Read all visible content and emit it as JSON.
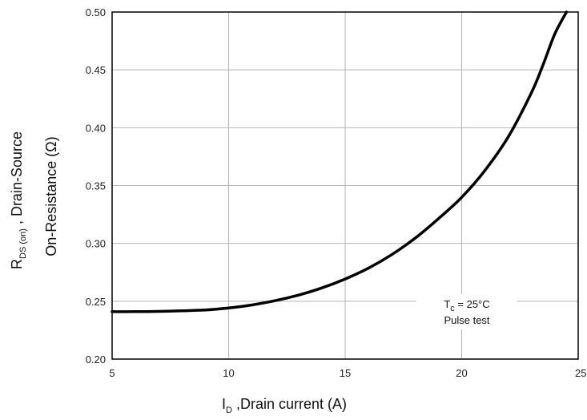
{
  "chart_data": {
    "type": "line",
    "xlabel": {
      "main": "I",
      "sub": "D",
      "rest": " ,Drain current (A)"
    },
    "ylabel": {
      "line1": {
        "main": "R",
        "sub": "DS (on)",
        "rest": " , Drain-Source"
      },
      "line2": "On-Resistance    (Ω)"
    },
    "xlim": [
      5,
      25
    ],
    "ylim": [
      0.2,
      0.5
    ],
    "x_ticks": [
      "5",
      "10",
      "15",
      "20",
      "25"
    ],
    "y_ticks": [
      "0.20",
      "0.25",
      "0.30",
      "0.35",
      "0.40",
      "0.45",
      "0.50"
    ],
    "grid": true,
    "annotation": {
      "line1": {
        "main": "T",
        "sub": "c",
        "rest": " = 25°C"
      },
      "line2": "Pulse test"
    },
    "series": [
      {
        "x": [
          5.0,
          6,
          7,
          8,
          9,
          10,
          11,
          12,
          13,
          14,
          15,
          16,
          17,
          18,
          19,
          20,
          21,
          22,
          23,
          23.5,
          24,
          24.5
        ],
        "y": [
          0.241,
          0.241,
          0.2412,
          0.2417,
          0.2425,
          0.2442,
          0.2468,
          0.2505,
          0.2553,
          0.2615,
          0.2692,
          0.2786,
          0.2903,
          0.3045,
          0.3213,
          0.3398,
          0.3631,
          0.3921,
          0.4305,
          0.4548,
          0.4812,
          0.5
        ]
      }
    ]
  }
}
